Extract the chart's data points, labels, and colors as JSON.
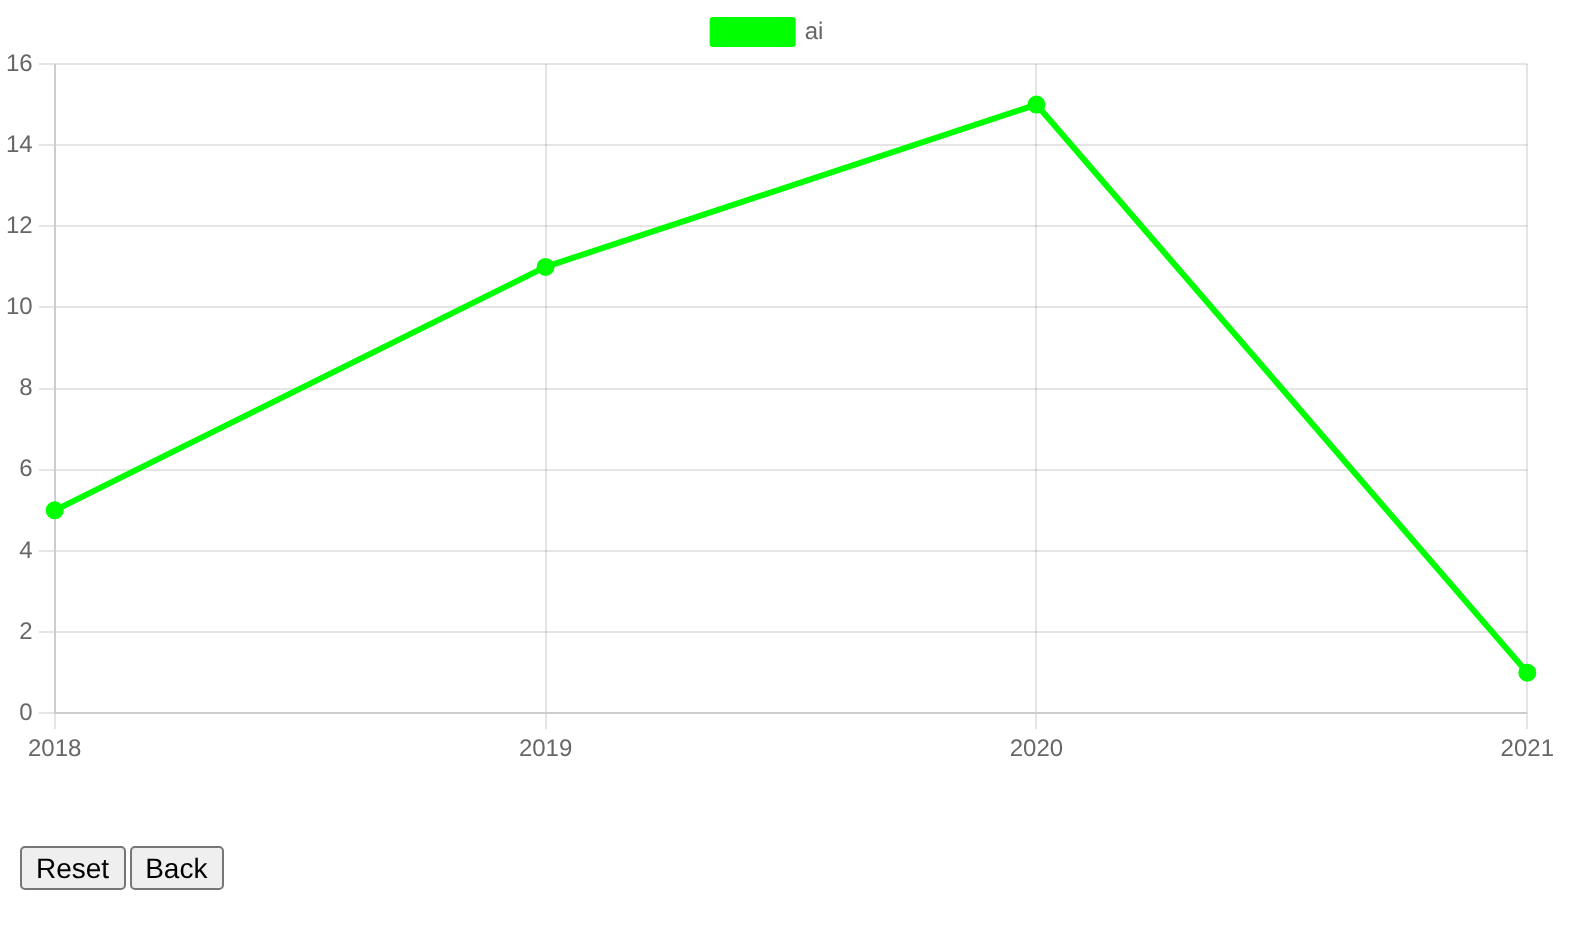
{
  "chart_data": {
    "type": "line",
    "categories": [
      "2018",
      "2019",
      "2020",
      "2021"
    ],
    "series": [
      {
        "name": "ai",
        "color": "#00ff00",
        "values": [
          5,
          11,
          15,
          1
        ]
      }
    ],
    "ylim": [
      0,
      16
    ],
    "yticks": [
      0,
      2,
      4,
      6,
      8,
      10,
      12,
      14,
      16
    ],
    "grid": true,
    "legend": "top",
    "marker": "circle",
    "line_style": "solid",
    "annotations": [
      "Reset",
      "Back"
    ]
  }
}
